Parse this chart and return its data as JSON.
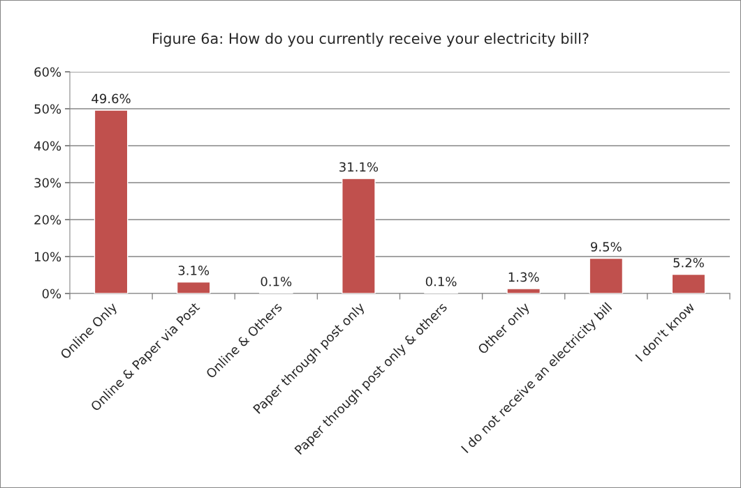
{
  "chart_data": {
    "type": "bar",
    "title": "Figure 6a: How do you currently receive your electricity bill?",
    "categories": [
      "Online Only",
      "Online & Paper via Post",
      "Online & Others",
      "Paper through post only",
      "Paper through post only & others",
      "Other only",
      "I do not receive an electricity bill",
      "I don't know"
    ],
    "values": [
      49.6,
      3.1,
      0.1,
      31.1,
      0.1,
      1.3,
      9.5,
      5.2
    ],
    "value_labels": [
      "49.6%",
      "3.1%",
      "0.1%",
      "31.1%",
      "0.1%",
      "1.3%",
      "9.5%",
      "5.2%"
    ],
    "color": "#c0504d",
    "ylim": [
      0,
      60
    ],
    "yticks": [
      {
        "value": 0,
        "label": "0%"
      },
      {
        "value": 10,
        "label": "10%"
      },
      {
        "value": 20,
        "label": "20%"
      },
      {
        "value": 30,
        "label": "30%"
      },
      {
        "value": 40,
        "label": "40%"
      },
      {
        "value": 50,
        "label": "50%"
      },
      {
        "value": 60,
        "label": "60%"
      }
    ],
    "grid": "y",
    "legend": false
  }
}
